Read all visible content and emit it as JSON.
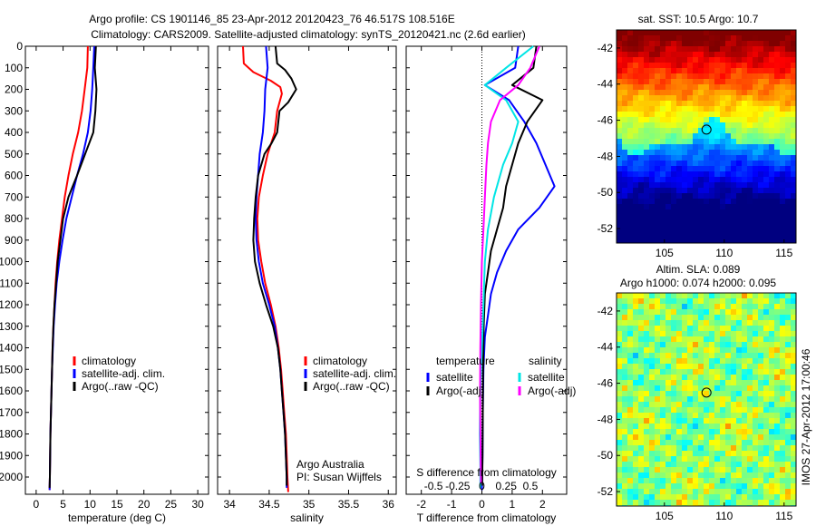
{
  "header": {
    "line1": "Argo profile: CS 1901146_85 23-Apr-2012 20120423_76 46.517S 108.516E",
    "line2": "Climatology: CARS2009. Satellite-adjusted climatology: synTS_20120421.nc (2.6d earlier)"
  },
  "colors": {
    "red": "#ff0000",
    "blue": "#0000ff",
    "black": "#000000",
    "cyan": "#00e5e5",
    "magenta": "#ff00ff"
  },
  "chart_data": [
    {
      "type": "line",
      "panel": "temperature",
      "xlabel": "temperature (deg C)",
      "ylabel": "",
      "xlim": [
        -2,
        32
      ],
      "ylim": [
        2080,
        0
      ],
      "xticks": [
        0,
        5,
        10,
        15,
        20,
        25,
        30
      ],
      "yticks": [
        0,
        100,
        200,
        300,
        400,
        500,
        600,
        700,
        800,
        900,
        1000,
        1100,
        1200,
        1300,
        1400,
        1500,
        1600,
        1700,
        1800,
        1900,
        2000
      ],
      "legend": [
        "climatology",
        "satellite-adj. clim.",
        "Argo(..raw -QC)"
      ],
      "series": [
        {
          "name": "climatology",
          "color": "red",
          "points": [
            [
              9.6,
              0
            ],
            [
              9.5,
              100
            ],
            [
              9.0,
              200
            ],
            [
              8.5,
              300
            ],
            [
              7.8,
              400
            ],
            [
              6.8,
              500
            ],
            [
              6.0,
              600
            ],
            [
              5.3,
              700
            ],
            [
              4.8,
              800
            ],
            [
              4.3,
              900
            ],
            [
              3.9,
              1000
            ],
            [
              3.6,
              1100
            ],
            [
              3.4,
              1200
            ],
            [
              3.2,
              1300
            ],
            [
              3.05,
              1400
            ],
            [
              2.95,
              1500
            ],
            [
              2.85,
              1600
            ],
            [
              2.75,
              1700
            ],
            [
              2.65,
              1800
            ],
            [
              2.6,
              1900
            ],
            [
              2.55,
              2000
            ],
            [
              2.5,
              2060
            ]
          ]
        },
        {
          "name": "satellite-adj. clim.",
          "color": "blue",
          "points": [
            [
              10.8,
              0
            ],
            [
              10.6,
              100
            ],
            [
              10.4,
              200
            ],
            [
              10.1,
              300
            ],
            [
              9.6,
              400
            ],
            [
              8.7,
              500
            ],
            [
              7.6,
              600
            ],
            [
              6.6,
              700
            ],
            [
              5.6,
              800
            ],
            [
              4.9,
              900
            ],
            [
              4.3,
              1000
            ],
            [
              3.8,
              1100
            ],
            [
              3.5,
              1200
            ],
            [
              3.25,
              1300
            ],
            [
              3.1,
              1400
            ],
            [
              2.95,
              1500
            ],
            [
              2.85,
              1600
            ],
            [
              2.75,
              1700
            ],
            [
              2.65,
              1800
            ],
            [
              2.6,
              1900
            ],
            [
              2.55,
              2000
            ],
            [
              2.5,
              2060
            ]
          ]
        },
        {
          "name": "Argo(..raw -QC)",
          "color": "black",
          "points": [
            [
              11.1,
              0
            ],
            [
              10.9,
              100
            ],
            [
              11.2,
              200
            ],
            [
              11.0,
              300
            ],
            [
              10.6,
              400
            ],
            [
              9.1,
              500
            ],
            [
              7.6,
              600
            ],
            [
              6.0,
              700
            ],
            [
              5.0,
              800
            ],
            [
              4.5,
              900
            ],
            [
              4.0,
              1000
            ],
            [
              3.7,
              1100
            ],
            [
              3.4,
              1200
            ],
            [
              3.2,
              1300
            ],
            [
              3.05,
              1400
            ],
            [
              2.95,
              1500
            ],
            [
              2.85,
              1600
            ],
            [
              2.75,
              1700
            ],
            [
              2.65,
              1800
            ],
            [
              2.6,
              1900
            ],
            [
              2.55,
              2000
            ],
            [
              2.5,
              2050
            ]
          ]
        }
      ]
    },
    {
      "type": "line",
      "panel": "salinity",
      "xlabel": "salinity",
      "ylabel": "",
      "xlim": [
        33.85,
        36.1
      ],
      "ylim": [
        2080,
        0
      ],
      "xticks": [
        34,
        34.5,
        35,
        35.5,
        36
      ],
      "legend": [
        "climatology",
        "satellite-adj. clim.",
        "Argo(..raw -QC)"
      ],
      "annotation": [
        "Argo Australia",
        "PI: Susan Wijffels"
      ],
      "series": [
        {
          "name": "climatology",
          "color": "red",
          "points": [
            [
              34.17,
              0
            ],
            [
              34.18,
              80
            ],
            [
              34.3,
              120
            ],
            [
              34.52,
              160
            ],
            [
              34.64,
              190
            ],
            [
              34.66,
              220
            ],
            [
              34.6,
              300
            ],
            [
              34.57,
              400
            ],
            [
              34.48,
              500
            ],
            [
              34.42,
              600
            ],
            [
              34.37,
              700
            ],
            [
              34.35,
              800
            ],
            [
              34.36,
              900
            ],
            [
              34.4,
              1000
            ],
            [
              34.45,
              1100
            ],
            [
              34.52,
              1200
            ],
            [
              34.58,
              1300
            ],
            [
              34.62,
              1400
            ],
            [
              34.65,
              1500
            ],
            [
              34.67,
              1600
            ],
            [
              34.69,
              1700
            ],
            [
              34.71,
              1800
            ],
            [
              34.72,
              1900
            ],
            [
              34.73,
              2000
            ],
            [
              34.74,
              2070
            ]
          ]
        },
        {
          "name": "satellite-adj. clim.",
          "color": "blue",
          "points": [
            [
              34.46,
              0
            ],
            [
              34.48,
              100
            ],
            [
              34.45,
              200
            ],
            [
              34.44,
              300
            ],
            [
              34.42,
              400
            ],
            [
              34.38,
              500
            ],
            [
              34.36,
              600
            ],
            [
              34.34,
              700
            ],
            [
              34.33,
              800
            ],
            [
              34.34,
              900
            ],
            [
              34.37,
              1000
            ],
            [
              34.42,
              1100
            ],
            [
              34.5,
              1200
            ],
            [
              34.57,
              1300
            ],
            [
              34.61,
              1400
            ],
            [
              34.64,
              1500
            ],
            [
              34.66,
              1600
            ],
            [
              34.68,
              1700
            ],
            [
              34.7,
              1800
            ],
            [
              34.71,
              1900
            ],
            [
              34.72,
              2000
            ],
            [
              34.72,
              2050
            ]
          ]
        },
        {
          "name": "Argo(..raw -QC)",
          "color": "black",
          "points": [
            [
              34.58,
              0
            ],
            [
              34.6,
              80
            ],
            [
              34.7,
              110
            ],
            [
              34.78,
              150
            ],
            [
              34.84,
              200
            ],
            [
              34.74,
              260
            ],
            [
              34.63,
              300
            ],
            [
              34.6,
              400
            ],
            [
              34.53,
              450
            ],
            [
              34.44,
              500
            ],
            [
              34.36,
              600
            ],
            [
              34.33,
              700
            ],
            [
              34.31,
              800
            ],
            [
              34.3,
              900
            ],
            [
              34.32,
              1000
            ],
            [
              34.38,
              1100
            ],
            [
              34.46,
              1200
            ],
            [
              34.55,
              1300
            ],
            [
              34.61,
              1400
            ],
            [
              34.64,
              1500
            ],
            [
              34.66,
              1600
            ],
            [
              34.68,
              1700
            ],
            [
              34.7,
              1800
            ],
            [
              34.71,
              1900
            ],
            [
              34.72,
              2000
            ],
            [
              34.72,
              2040
            ]
          ]
        }
      ]
    },
    {
      "type": "line",
      "panel": "differences",
      "xlabel": "T difference from climatology",
      "x2label": "S difference from climatology",
      "xlim": [
        -2.5,
        2.8
      ],
      "ylim": [
        2080,
        0
      ],
      "xticks": [
        -2,
        -1,
        0,
        1,
        2
      ],
      "x2ticks": [
        "-0.5",
        "-0.25",
        "0",
        "0.25",
        "0.5"
      ],
      "legend_titles": [
        "temperature",
        "salinity"
      ],
      "legend": [
        "satellite",
        "Argo(-adj)",
        "satellite",
        "Argo(-adj)"
      ],
      "series": [
        {
          "name": "satellite",
          "group": "temperature",
          "color": "blue",
          "points": [
            [
              1.2,
              0
            ],
            [
              1.1,
              100
            ],
            [
              0.1,
              180
            ],
            [
              0.9,
              250
            ],
            [
              1.4,
              350
            ],
            [
              1.8,
              450
            ],
            [
              2.1,
              550
            ],
            [
              2.4,
              650
            ],
            [
              1.9,
              750
            ],
            [
              1.2,
              850
            ],
            [
              0.8,
              950
            ],
            [
              0.5,
              1050
            ],
            [
              0.3,
              1150
            ],
            [
              0.2,
              1250
            ],
            [
              0.1,
              1350
            ],
            [
              0.05,
              1500
            ],
            [
              0.03,
              1700
            ],
            [
              0.02,
              1900
            ],
            [
              0.0,
              2060
            ]
          ]
        },
        {
          "name": "Argo(-adj)",
          "group": "temperature",
          "color": "black",
          "points": [
            [
              1.8,
              0
            ],
            [
              1.7,
              100
            ],
            [
              1.0,
              180
            ],
            [
              2.0,
              250
            ],
            [
              1.5,
              350
            ],
            [
              1.2,
              450
            ],
            [
              1.0,
              550
            ],
            [
              0.8,
              650
            ],
            [
              0.7,
              750
            ],
            [
              0.5,
              850
            ],
            [
              0.3,
              950
            ],
            [
              0.2,
              1050
            ],
            [
              0.1,
              1150
            ],
            [
              0.06,
              1300
            ],
            [
              0.04,
              1500
            ],
            [
              0.03,
              1700
            ],
            [
              0.02,
              1900
            ],
            [
              0.01,
              2040
            ]
          ]
        },
        {
          "name": "satellite",
          "group": "salinity",
          "color": "cyan",
          "points": [
            [
              1.7,
              0
            ],
            [
              0.8,
              100
            ],
            [
              0.1,
              180
            ],
            [
              0.8,
              250
            ],
            [
              1.2,
              350
            ],
            [
              1.0,
              450
            ],
            [
              0.7,
              550
            ],
            [
              0.4,
              700
            ],
            [
              0.2,
              850
            ],
            [
              0.1,
              1000
            ],
            [
              0.05,
              1200
            ],
            [
              0.0,
              1400
            ],
            [
              -0.05,
              1600
            ],
            [
              -0.07,
              1800
            ],
            [
              -0.05,
              1950
            ],
            [
              -0.05,
              2050
            ]
          ]
        },
        {
          "name": "Argo(-adj)",
          "group": "salinity",
          "color": "magenta",
          "points": [
            [
              1.9,
              0
            ],
            [
              1.6,
              100
            ],
            [
              1.2,
              180
            ],
            [
              0.6,
              250
            ],
            [
              0.3,
              350
            ],
            [
              0.2,
              450
            ],
            [
              0.15,
              550
            ],
            [
              0.1,
              700
            ],
            [
              0.05,
              850
            ],
            [
              0.0,
              1000
            ],
            [
              -0.03,
              1200
            ],
            [
              -0.05,
              1400
            ],
            [
              -0.06,
              1600
            ],
            [
              -0.05,
              1800
            ],
            [
              -0.04,
              1950
            ],
            [
              -0.03,
              2030
            ]
          ]
        }
      ]
    }
  ],
  "maps": [
    {
      "name": "sst-map",
      "title": "sat. SST: 10.5 Argo: 10.7",
      "xticks": [
        "105",
        "110",
        "115"
      ],
      "yticks": [
        "-42",
        "-44",
        "-46",
        "-48",
        "-50",
        "-52"
      ],
      "xlim": [
        101,
        116
      ],
      "ylim": [
        -52.8,
        -41
      ]
    },
    {
      "name": "sla-map",
      "title1": "Altim. SLA: 0.089",
      "title2": "Argo h1000: 0.074 h2000: 0.095",
      "xticks": [
        "105",
        "110",
        "115"
      ],
      "yticks": [
        "-42",
        "-44",
        "-46",
        "-48",
        "-50",
        "-52"
      ],
      "xlim": [
        101,
        116
      ],
      "ylim": [
        -52.8,
        -41
      ]
    }
  ],
  "marker": {
    "lon": 108.516,
    "lat": -46.517
  },
  "footer_stamp": "IMOS 27-Apr-2012 17:00:46"
}
